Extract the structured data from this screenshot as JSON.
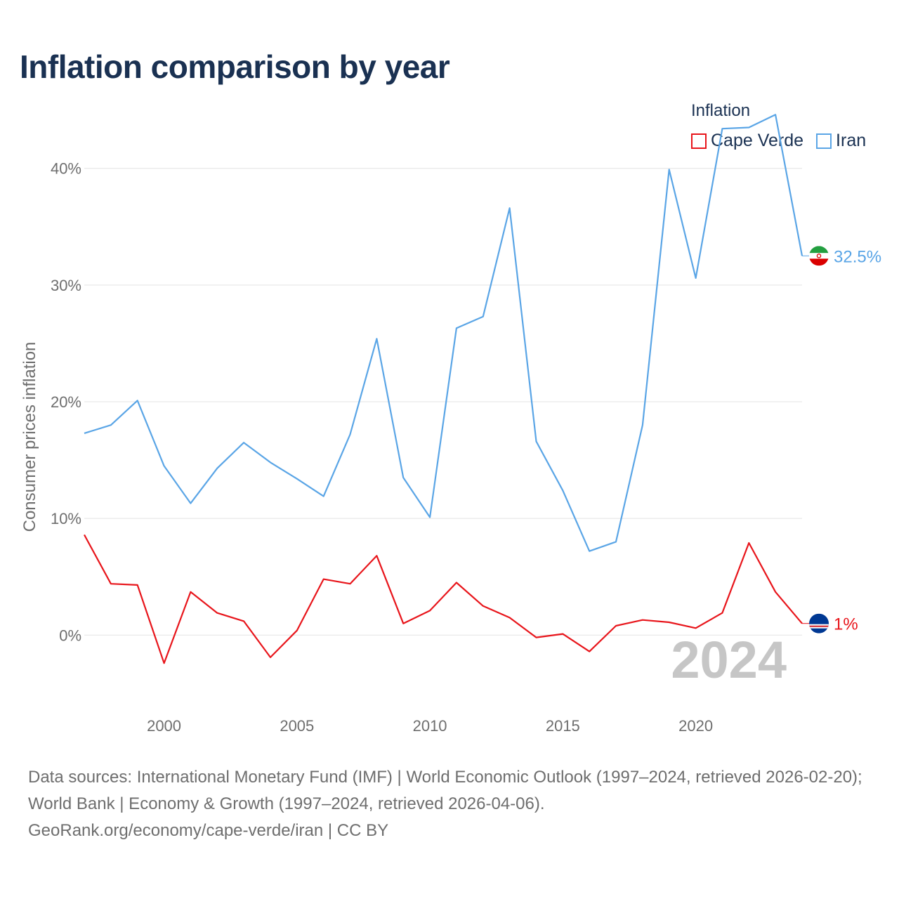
{
  "title": "Inflation comparison by year",
  "legend": {
    "title": "Inflation",
    "items": [
      {
        "label": "Cape Verde",
        "color": "#e8151b"
      },
      {
        "label": "Iran",
        "color": "#5aa5e6"
      }
    ]
  },
  "chart_data": {
    "type": "line",
    "title": "Inflation comparison by year",
    "xlabel": "",
    "ylabel": "Consumer prices inflation",
    "x": [
      1997,
      1998,
      1999,
      2000,
      2001,
      2002,
      2003,
      2004,
      2005,
      2006,
      2007,
      2008,
      2009,
      2010,
      2011,
      2012,
      2013,
      2014,
      2015,
      2016,
      2017,
      2018,
      2019,
      2020,
      2021,
      2022,
      2023,
      2024
    ],
    "xlim": [
      1997,
      2024
    ],
    "ylim": [
      -6,
      46
    ],
    "xticks": [
      2000,
      2005,
      2010,
      2015,
      2020
    ],
    "xtick_labels": [
      "2000",
      "2005",
      "2010",
      "2015",
      "2020"
    ],
    "yticks": [
      0,
      10,
      20,
      30,
      40
    ],
    "ytick_labels": [
      "0%",
      "10%",
      "20%",
      "30%",
      "40%"
    ],
    "grid": true,
    "year_watermark": "2024",
    "series": [
      {
        "name": "Iran",
        "color": "#5aa5e6",
        "end_label": "32.5%",
        "flag": "iran-flag-icon",
        "values": [
          17.3,
          18.0,
          20.1,
          14.5,
          11.3,
          14.3,
          16.5,
          14.8,
          13.4,
          11.9,
          17.2,
          25.4,
          13.5,
          10.1,
          26.3,
          27.3,
          36.6,
          16.6,
          12.4,
          7.2,
          8.0,
          18.0,
          39.9,
          30.6,
          43.4,
          43.5,
          44.6,
          32.5
        ]
      },
      {
        "name": "Cape Verde",
        "color": "#e8151b",
        "end_label": "1%",
        "flag": "cape-verde-flag-icon",
        "values": [
          8.6,
          4.4,
          4.3,
          -2.4,
          3.7,
          1.9,
          1.2,
          -1.9,
          0.4,
          4.8,
          4.4,
          6.8,
          1.0,
          2.1,
          4.5,
          2.5,
          1.5,
          -0.2,
          0.1,
          -1.4,
          0.8,
          1.3,
          1.1,
          0.6,
          1.9,
          7.9,
          3.7,
          1.0
        ]
      }
    ]
  },
  "sources": {
    "line1": "Data sources: International Monetary Fund (IMF) | World Economic Outlook (1997–2024, retrieved 2026-02-20); World Bank | Economy & Growth (1997–2024, retrieved 2026-04-06).",
    "line2": "GeoRank.org/economy/cape-verde/iran | CC BY"
  }
}
